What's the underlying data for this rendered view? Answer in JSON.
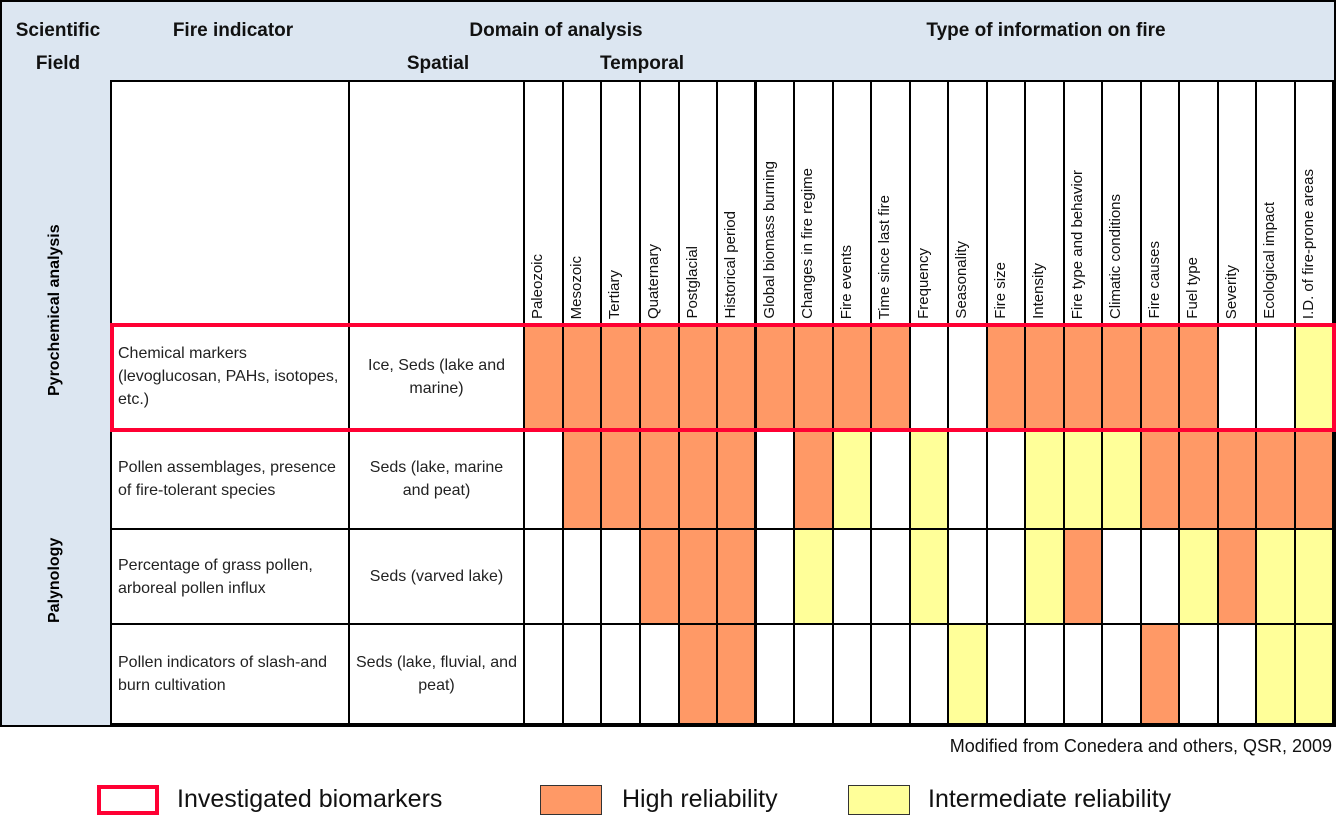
{
  "header": {
    "scientific_field_1": "Scientific",
    "scientific_field_2": "Field",
    "fire_indicator": "Fire indicator",
    "domain": "Domain of analysis",
    "spatial": "Spatial",
    "temporal": "Temporal",
    "type_info": "Type of information on fire"
  },
  "temporal_columns": [
    "Paleozoic",
    "Mesozoic",
    "Tertiary",
    "Quaternary",
    "Postglacial",
    "Historical period"
  ],
  "info_columns": [
    "Global biomass burning",
    "Changes in fire regime",
    "Fire events",
    "Time since last fire",
    "Frequency",
    "Seasonality",
    "Fire size",
    "Intensity",
    "Fire type and behavior",
    "Climatic conditions",
    "Fire causes",
    "Fuel type",
    "Severity",
    "Ecological impact",
    "I.D. of fire-prone areas"
  ],
  "fields": [
    "Pyrochemical analysis",
    "Palynology"
  ],
  "rows": [
    {
      "indicator": "Chemical markers (levoglucosan, PAHs, isotopes, etc.)",
      "spatial": "Ice, Seds (lake and marine)",
      "cells": "HHHHHHHHHH--HHHHHH--I"
    },
    {
      "indicator": "Pollen assemblages, presence of fire-tolerant species",
      "spatial": "Seds (lake, marine and peat)",
      "cells": "-HHHHH-HI-I--IIIHHHHH"
    },
    {
      "indicator": "Percentage of grass pollen, arboreal pollen influx",
      "spatial": "Seds (varved lake)",
      "cells": "---HHH-I--I--IH--IHII"
    },
    {
      "indicator": "Pollen indicators of slash-and burn cultivation",
      "spatial": "Seds  (lake, fluvial, and peat)",
      "cells": "----HH-----I----H--II"
    }
  ],
  "source": "Modified from Conedera and others, QSR, 2009",
  "legend": {
    "investigated": "Investigated biomarkers",
    "high": "High reliability",
    "intermediate": "Intermediate reliability"
  },
  "colors": {
    "high": "#ff9966",
    "intermediate": "#ffff99",
    "none": "#ffffff",
    "highlight": "#ff0033",
    "header_bg": "#dce6f1"
  }
}
